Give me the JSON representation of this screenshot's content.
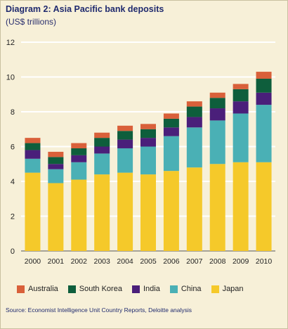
{
  "chart_data": {
    "type": "bar",
    "stacked": true,
    "title": "Diagram 2: Asia Pacific bank deposits",
    "ylabel": "(US$ trillions)",
    "ylim": [
      0,
      12
    ],
    "yticks": [
      0,
      2,
      4,
      6,
      8,
      10,
      12
    ],
    "grid": true,
    "categories": [
      "2000",
      "2001",
      "2002",
      "2003",
      "2004",
      "2005",
      "2006",
      "2007",
      "2008",
      "2009",
      "2010"
    ],
    "series": [
      {
        "name": "Japan",
        "color": "#f5c92a",
        "values": [
          4.5,
          3.9,
          4.1,
          4.4,
          4.5,
          4.4,
          4.6,
          4.8,
          5.0,
          5.1,
          5.1
        ]
      },
      {
        "name": "China",
        "color": "#4ab0b5",
        "values": [
          0.8,
          0.8,
          1.0,
          1.2,
          1.4,
          1.6,
          2.0,
          2.3,
          2.5,
          2.8,
          3.3
        ]
      },
      {
        "name": "India",
        "color": "#4a1f7a",
        "values": [
          0.5,
          0.3,
          0.4,
          0.4,
          0.5,
          0.5,
          0.5,
          0.6,
          0.7,
          0.7,
          0.7
        ]
      },
      {
        "name": "South Korea",
        "color": "#0e5e3c",
        "values": [
          0.4,
          0.4,
          0.4,
          0.5,
          0.5,
          0.5,
          0.5,
          0.6,
          0.6,
          0.7,
          0.8
        ]
      },
      {
        "name": "Australia",
        "color": "#d9603a",
        "values": [
          0.3,
          0.3,
          0.3,
          0.3,
          0.3,
          0.3,
          0.3,
          0.3,
          0.3,
          0.3,
          0.4
        ]
      }
    ],
    "legend_order": [
      "Australia",
      "South Korea",
      "India",
      "China",
      "Japan"
    ],
    "source": "Source: Economist Intelligence Unit Country Reports, Deloitte analysis"
  }
}
